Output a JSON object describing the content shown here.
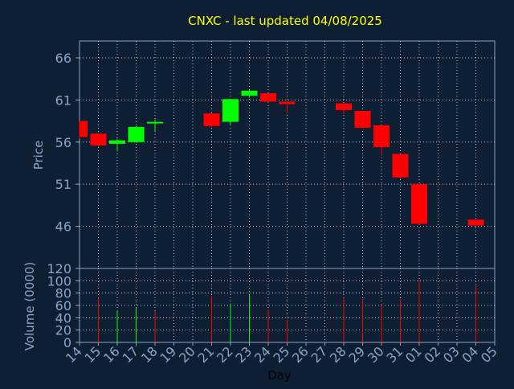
{
  "chart_data": [
    {
      "type": "candlestick",
      "title": "CNXC - last updated 04/08/2025",
      "ylabel": "Price",
      "ylim": [
        41,
        68
      ],
      "yticks": [
        46,
        51,
        56,
        61,
        66
      ],
      "grid": true,
      "categories": [
        "14",
        "15",
        "16",
        "17",
        "18",
        "19",
        "20",
        "21",
        "22",
        "23",
        "24",
        "25",
        "26",
        "27",
        "28",
        "29",
        "30",
        "31",
        "01",
        "02",
        "03",
        "04",
        "05"
      ],
      "candles": [
        {
          "day": "14",
          "open": 58.5,
          "close": 56.6,
          "high": 58.5,
          "low": 56.4
        },
        {
          "day": "15",
          "open": 57.0,
          "close": 55.6,
          "high": 57.0,
          "low": 55.5
        },
        {
          "day": "16",
          "open": 55.8,
          "close": 56.2,
          "high": 56.4,
          "low": 54.9
        },
        {
          "day": "17",
          "open": 56.0,
          "close": 57.8,
          "high": 57.9,
          "low": 55.9
        },
        {
          "day": "18",
          "open": 58.3,
          "close": 58.4,
          "high": 58.7,
          "low": 57.3
        },
        {
          "day": "21",
          "open": 59.4,
          "close": 57.9,
          "high": 59.4,
          "low": 57.8
        },
        {
          "day": "22",
          "open": 58.4,
          "close": 61.1,
          "high": 61.1,
          "low": 58.0
        },
        {
          "day": "23",
          "open": 61.5,
          "close": 62.1,
          "high": 62.3,
          "low": 61.3
        },
        {
          "day": "24",
          "open": 61.8,
          "close": 60.8,
          "high": 61.8,
          "low": 60.7
        },
        {
          "day": "25",
          "open": 60.8,
          "close": 60.5,
          "high": 60.9,
          "low": 59.5
        },
        {
          "day": "28",
          "open": 60.6,
          "close": 59.8,
          "high": 60.6,
          "low": 59.3
        },
        {
          "day": "29",
          "open": 59.7,
          "close": 57.7,
          "high": 59.7,
          "low": 57.6
        },
        {
          "day": "30",
          "open": 58.0,
          "close": 55.4,
          "high": 58.0,
          "low": 54.4
        },
        {
          "day": "31",
          "open": 54.6,
          "close": 51.8,
          "high": 54.6,
          "low": 51.7
        },
        {
          "day": "01",
          "open": 51.0,
          "close": 46.3,
          "high": 51.1,
          "low": 46.2
        },
        {
          "day": "04",
          "open": 46.8,
          "close": 46.1,
          "high": 46.8,
          "low": 46.0
        }
      ]
    },
    {
      "type": "bar",
      "ylabel": "Volume (0000)",
      "xlabel": "Day",
      "ylim": [
        0,
        120
      ],
      "yticks": [
        0,
        20,
        40,
        60,
        80,
        100,
        120
      ],
      "grid": true,
      "categories": [
        "14",
        "15",
        "16",
        "17",
        "18",
        "19",
        "20",
        "21",
        "22",
        "23",
        "24",
        "25",
        "26",
        "27",
        "28",
        "29",
        "30",
        "31",
        "01",
        "02",
        "03",
        "04",
        "05"
      ],
      "bars": [
        {
          "day": "15",
          "value": 72,
          "color": "#ff0000"
        },
        {
          "day": "16",
          "value": 52,
          "color": "#00ff00"
        },
        {
          "day": "17",
          "value": 56,
          "color": "#00ff00"
        },
        {
          "day": "18",
          "value": 51,
          "color": "#ff0000"
        },
        {
          "day": "21",
          "value": 75,
          "color": "#ff0000"
        },
        {
          "day": "22",
          "value": 63,
          "color": "#00ff00"
        },
        {
          "day": "23",
          "value": 78,
          "color": "#00ff00"
        },
        {
          "day": "24",
          "value": 54,
          "color": "#ff0000"
        },
        {
          "day": "25",
          "value": 37,
          "color": "#ff0000"
        },
        {
          "day": "28",
          "value": 72,
          "color": "#ff0000"
        },
        {
          "day": "29",
          "value": 70,
          "color": "#ff0000"
        },
        {
          "day": "30",
          "value": 62,
          "color": "#ff0000"
        },
        {
          "day": "31",
          "value": 70,
          "color": "#ff0000"
        },
        {
          "day": "01",
          "value": 102,
          "color": "#ff0000"
        },
        {
          "day": "04",
          "value": 91,
          "color": "#ff0000"
        }
      ]
    }
  ],
  "colors": {
    "background": "#0e1f33",
    "axis_text": "#8aa4c6",
    "title_text": "#ffff00",
    "up": "#00ff00",
    "down": "#ff0000",
    "grid": "#c8c8c8",
    "frame": "#8aa4c6"
  }
}
